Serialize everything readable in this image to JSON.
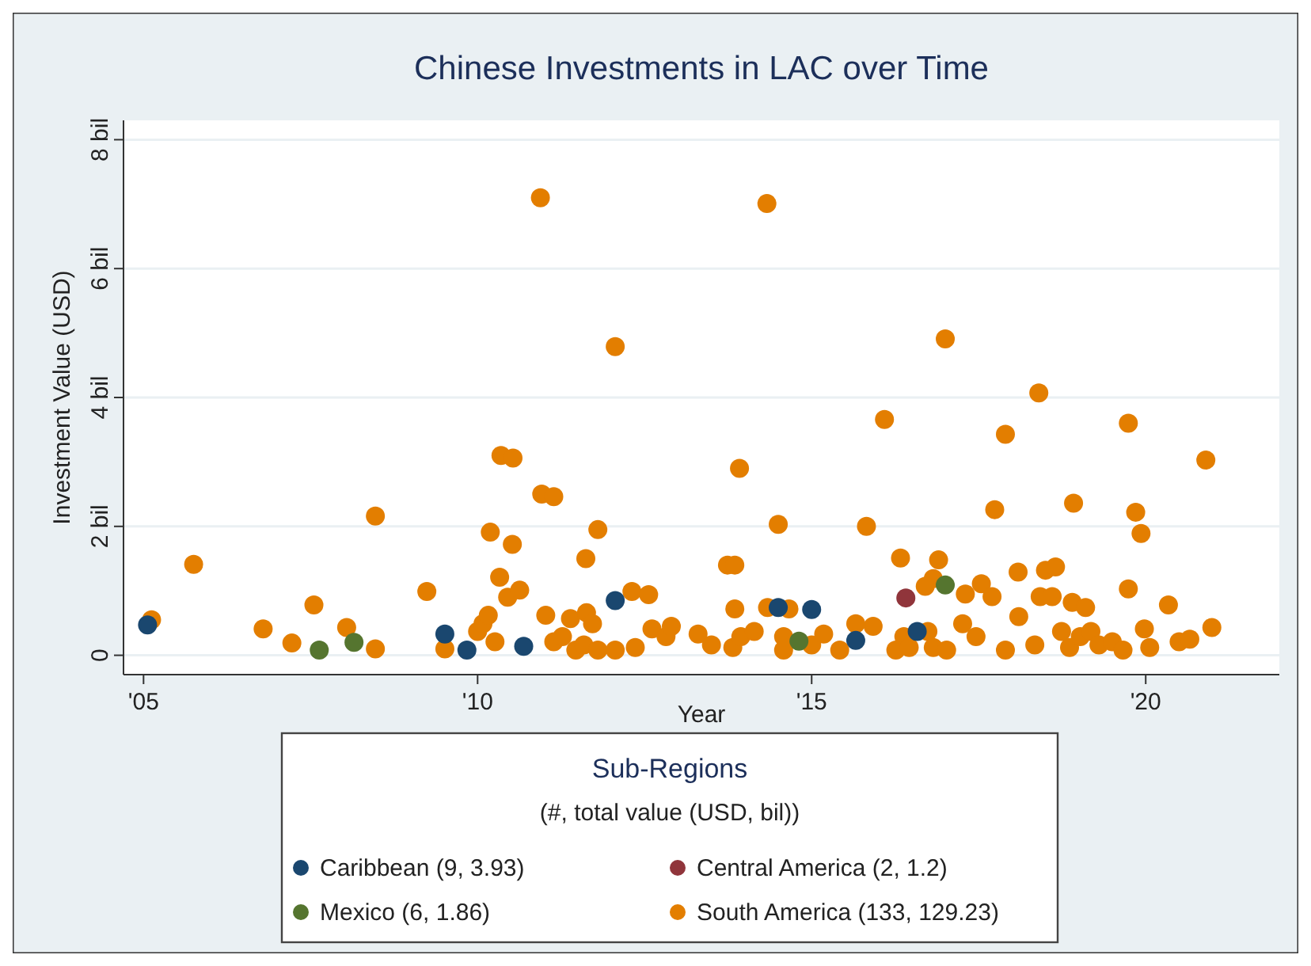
{
  "chart_data": {
    "type": "scatter",
    "title": "Chinese Investments in LAC over Time",
    "xlabel": "Year",
    "ylabel": "Investment Value (USD)",
    "legend_title": "Sub-Regions",
    "annotations": [
      "(#, total value (USD, bil))"
    ],
    "xlim": [
      2004.7,
      2022
    ],
    "ylim": [
      -0.3,
      8.3
    ],
    "xticks": [
      {
        "value": 2005,
        "label": "'05"
      },
      {
        "value": 2010,
        "label": "'10"
      },
      {
        "value": 2015,
        "label": "'15"
      },
      {
        "value": 2020,
        "label": "'20"
      }
    ],
    "yticks": [
      0,
      {
        "value": 2,
        "label": "2 bil"
      },
      {
        "value": 4,
        "label": "4 bil"
      },
      {
        "value": 6,
        "label": "6 bil"
      },
      {
        "value": 8,
        "label": "8 bil"
      }
    ],
    "grid": "y",
    "legend": "bottom",
    "marker": "circle",
    "series": [
      {
        "name": "South America (133, 129.23)",
        "color": "#e37e00",
        "x": [
          2005.12,
          2005.75,
          2006.79,
          2007.22,
          2007.55,
          2008.04,
          2008.47,
          2008.47,
          2009.24,
          2009.51,
          2010.0,
          2010.08,
          2010.16,
          2010.26,
          2010.19,
          2010.33,
          2010.35,
          2010.53,
          2010.52,
          2010.45,
          2010.63,
          2010.94,
          2010.96,
          2011.14,
          2011.02,
          2011.14,
          2011.39,
          2011.27,
          2011.47,
          2011.62,
          2011.63,
          2011.72,
          2011.8,
          2011.59,
          2011.8,
          2012.06,
          2012.06,
          2012.31,
          2012.56,
          2012.36,
          2012.61,
          2012.82,
          2012.9,
          2013.3,
          2013.5,
          2013.82,
          2013.94,
          2014.14,
          2013.74,
          2013.85,
          2013.85,
          2013.92,
          2014.33,
          2014.34,
          2014.66,
          2014.5,
          2014.58,
          2014.58,
          2015.0,
          2015.18,
          2015.42,
          2015.66,
          2015.92,
          2015.82,
          2016.09,
          2016.33,
          2016.38,
          2016.26,
          2016.46,
          2016.74,
          2016.82,
          2016.9,
          2016.82,
          2016.7,
          2017.0,
          2017.02,
          2017.26,
          2017.3,
          2017.46,
          2017.54,
          2017.7,
          2017.74,
          2017.9,
          2017.9,
          2018.09,
          2018.1,
          2018.34,
          2018.4,
          2018.5,
          2018.65,
          2018.42,
          2018.6,
          2018.74,
          2018.86,
          2018.92,
          2018.9,
          2019.1,
          2019.02,
          2019.18,
          2019.3,
          2019.5,
          2019.66,
          2019.74,
          2019.85,
          2019.93,
          2019.74,
          2019.98,
          2020.06,
          2020.34,
          2020.5,
          2020.66,
          2020.9,
          2020.99
        ],
        "values": [
          0.55,
          1.41,
          0.41,
          0.19,
          0.78,
          0.43,
          0.1,
          2.16,
          0.99,
          0.1,
          0.37,
          0.49,
          0.62,
          0.21,
          1.91,
          1.21,
          3.1,
          3.06,
          1.72,
          0.9,
          1.01,
          7.1,
          2.5,
          2.46,
          0.62,
          0.21,
          0.57,
          0.29,
          0.08,
          1.5,
          0.66,
          0.49,
          1.95,
          0.16,
          0.08,
          0.08,
          4.79,
          0.99,
          0.94,
          0.12,
          0.41,
          0.29,
          0.45,
          0.33,
          0.16,
          0.12,
          0.29,
          0.37,
          1.4,
          1.4,
          0.72,
          2.9,
          7.01,
          0.74,
          0.72,
          2.03,
          0.29,
          0.08,
          0.16,
          0.33,
          0.08,
          0.49,
          0.45,
          2.0,
          3.66,
          1.51,
          0.29,
          0.08,
          0.12,
          0.37,
          0.12,
          1.48,
          1.19,
          1.07,
          4.91,
          0.08,
          0.49,
          0.95,
          0.29,
          1.11,
          0.91,
          2.26,
          3.43,
          0.08,
          1.29,
          0.6,
          0.16,
          4.07,
          1.32,
          1.37,
          0.91,
          0.91,
          0.37,
          0.12,
          2.36,
          0.82,
          0.74,
          0.29,
          0.37,
          0.16,
          0.21,
          0.08,
          3.6,
          2.22,
          1.89,
          1.03,
          0.41,
          0.12,
          0.78,
          0.21,
          0.25,
          3.03,
          0.43
        ]
      },
      {
        "name": "Caribbean (9, 3.93)",
        "color": "#1a476f",
        "x": [
          2005.06,
          2009.51,
          2009.84,
          2010.69,
          2012.06,
          2015.0,
          2015.66,
          2014.5,
          2016.58
        ],
        "values": [
          0.47,
          0.33,
          0.08,
          0.14,
          0.85,
          0.71,
          0.23,
          0.74,
          0.37
        ]
      },
      {
        "name": "Central America (2, 1.2)",
        "color": "#90353b",
        "x": [
          2016.41
        ],
        "values": [
          0.89
        ]
      },
      {
        "name": "Mexico (6, 1.86)",
        "color": "#55752f",
        "x": [
          2007.63,
          2008.15,
          2014.81,
          2017.0
        ],
        "values": [
          0.08,
          0.2,
          0.22,
          1.09
        ]
      }
    ]
  }
}
